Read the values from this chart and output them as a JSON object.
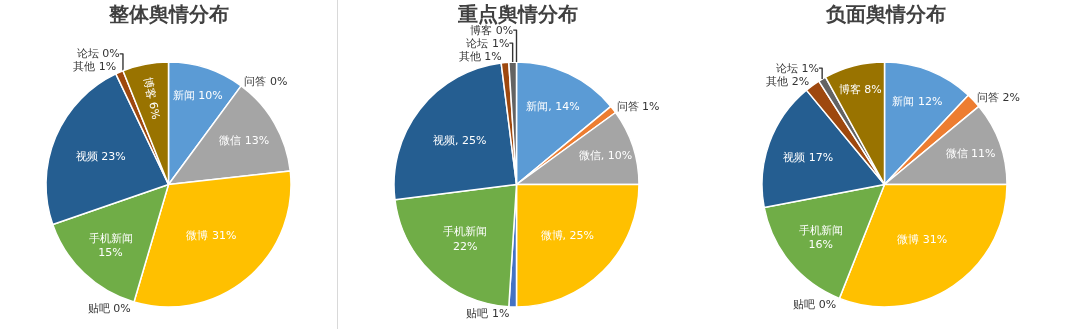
{
  "chart_data": [
    {
      "type": "pie",
      "title": "整体舆情分布",
      "categories": [
        "新闻",
        "问答",
        "微信",
        "微博",
        "贴吧",
        "手机新闻",
        "视频",
        "其他",
        "论坛",
        "博客"
      ],
      "values": [
        10,
        0,
        13,
        31,
        0,
        15,
        23,
        1,
        0,
        6
      ],
      "value_labels": [
        "10%",
        "0%",
        "13%",
        "31%",
        "0%",
        "15%",
        "23%",
        "1%",
        "0%",
        "6%"
      ],
      "colors": [
        "#5b9bd5",
        "#ed7d31",
        "#a5a5a5",
        "#ffc000",
        "#4472c4",
        "#70ad47",
        "#255e91",
        "#9e480e",
        "#636363",
        "#997300"
      ]
    },
    {
      "type": "pie",
      "title": "重点舆情分布",
      "categories": [
        "新闻",
        "问答",
        "微信",
        "微博",
        "贴吧",
        "手机新闻",
        "视频",
        "其他",
        "论坛",
        "博客"
      ],
      "values": [
        14,
        1,
        10,
        25,
        1,
        22,
        25,
        1,
        1,
        0
      ],
      "value_labels": [
        ", 14%",
        "1%",
        ", 10%",
        ", 25%",
        "1%",
        "22%",
        ", 25%",
        "1%",
        "1%",
        "0%"
      ],
      "colors": [
        "#5b9bd5",
        "#ed7d31",
        "#a5a5a5",
        "#ffc000",
        "#4472c4",
        "#70ad47",
        "#255e91",
        "#9e480e",
        "#636363",
        "#997300"
      ]
    },
    {
      "type": "pie",
      "title": "负面舆情分布",
      "categories": [
        "新闻",
        "问答",
        "微信",
        "微博",
        "贴吧",
        "手机新闻",
        "视频",
        "其他",
        "论坛",
        "博客"
      ],
      "values": [
        12,
        2,
        11,
        31,
        0,
        16,
        17,
        2,
        1,
        8
      ],
      "value_labels": [
        "12%",
        "2%",
        "11%",
        "31%",
        "0%",
        "16%",
        "17%",
        "2%",
        "1%",
        "8%"
      ],
      "colors": [
        "#5b9bd5",
        "#ed7d31",
        "#a5a5a5",
        "#ffc000",
        "#4472c4",
        "#70ad47",
        "#255e91",
        "#9e480e",
        "#636363",
        "#997300"
      ]
    }
  ]
}
